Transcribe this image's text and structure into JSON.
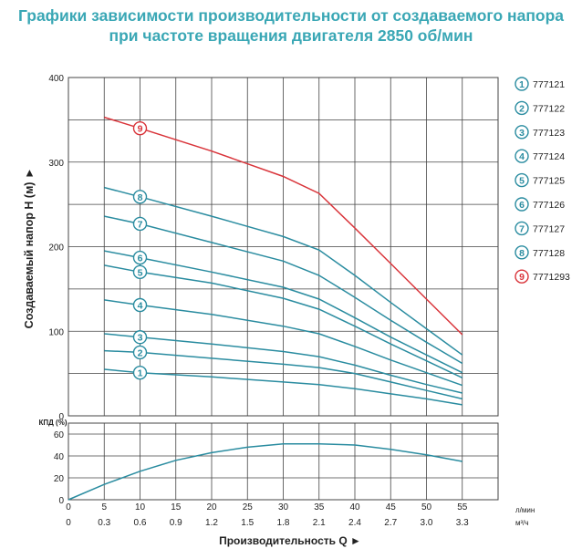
{
  "header": {
    "title_line1": "Графики зависимости производительности от создаваемого напора",
    "title_line2": "при частоте вращения двигателя 2850 об/мин"
  },
  "colors": {
    "curve": "#2a8ca0",
    "curve9": "#d9343a",
    "grid": "#444444",
    "title": "#3aa7b5"
  },
  "chart_data": [
    {
      "type": "line",
      "ylabel": "Создаваемый напор Н (м) ►",
      "ylim": [
        0,
        400
      ],
      "yticks": [
        0,
        100,
        200,
        300,
        400
      ],
      "xlim": [
        0,
        60
      ],
      "xticks": [
        5,
        10,
        15,
        20,
        25,
        30,
        35,
        40,
        45,
        50,
        55
      ],
      "series": [
        {
          "name": "777121",
          "label": "1",
          "marker_x": 10,
          "x": [
            5,
            10,
            20,
            30,
            35,
            40,
            45,
            50,
            55
          ],
          "y": [
            55,
            51,
            46,
            40,
            37,
            32,
            26,
            20,
            13
          ]
        },
        {
          "name": "777122",
          "label": "2",
          "marker_x": 10,
          "x": [
            5,
            10,
            20,
            30,
            35,
            40,
            45,
            50,
            55
          ],
          "y": [
            77,
            75,
            68,
            61,
            57,
            50,
            40,
            30,
            20
          ]
        },
        {
          "name": "777123",
          "label": "3",
          "marker_x": 10,
          "x": [
            5,
            10,
            20,
            30,
            35,
            40,
            45,
            50,
            55
          ],
          "y": [
            97,
            93,
            85,
            76,
            70,
            60,
            48,
            37,
            27
          ]
        },
        {
          "name": "777124",
          "label": "4",
          "marker_x": 10,
          "x": [
            5,
            10,
            20,
            30,
            35,
            40,
            45,
            50,
            55
          ],
          "y": [
            137,
            131,
            120,
            106,
            97,
            82,
            66,
            51,
            36
          ]
        },
        {
          "name": "777125",
          "label": "5",
          "marker_x": 10,
          "x": [
            5,
            10,
            20,
            30,
            35,
            40,
            45,
            50,
            55
          ],
          "y": [
            178,
            170,
            157,
            139,
            126,
            106,
            85,
            65,
            45
          ]
        },
        {
          "name": "777126",
          "label": "6",
          "marker_x": 10,
          "x": [
            5,
            10,
            20,
            30,
            35,
            40,
            45,
            50,
            55
          ],
          "y": [
            195,
            187,
            170,
            152,
            138,
            116,
            93,
            72,
            51
          ]
        },
        {
          "name": "777127",
          "label": "7",
          "marker_x": 10,
          "x": [
            5,
            10,
            20,
            30,
            35,
            40,
            45,
            50,
            55
          ],
          "y": [
            236,
            227,
            205,
            183,
            166,
            140,
            113,
            87,
            62
          ]
        },
        {
          "name": "777128",
          "label": "8",
          "marker_x": 10,
          "x": [
            5,
            10,
            20,
            30,
            35,
            40,
            45,
            50,
            55
          ],
          "y": [
            270,
            259,
            236,
            212,
            196,
            166,
            134,
            103,
            72
          ]
        },
        {
          "name": "7771293",
          "label": "9",
          "marker_x": 10,
          "highlight": true,
          "x": [
            5,
            10,
            20,
            30,
            35,
            40,
            45,
            50,
            55
          ],
          "y": [
            353,
            340,
            313,
            283,
            263,
            222,
            180,
            138,
            96
          ]
        }
      ]
    },
    {
      "type": "line",
      "ylabel": "КПД (%)",
      "ylim": [
        0,
        70
      ],
      "yticks": [
        0,
        20,
        40,
        60
      ],
      "xlabel": "Производительность Q ►",
      "xticks": [
        0,
        5,
        10,
        15,
        20,
        25,
        30,
        35,
        40,
        45,
        50,
        55
      ],
      "x2_labels": [
        "0",
        "0.3",
        "0.6",
        "0.9",
        "1.2",
        "1.5",
        "1.8",
        "2.1",
        "2.4",
        "2.7",
        "3.0",
        "3.3"
      ],
      "unit_lpm": "л/мин",
      "unit_m3h": "м³/ч",
      "series": [
        {
          "x": [
            0,
            5,
            10,
            15,
            20,
            25,
            30,
            35,
            40,
            45,
            50,
            55
          ],
          "y": [
            0,
            14,
            26,
            36,
            43,
            48,
            51,
            51,
            50,
            46,
            41,
            35
          ]
        }
      ]
    }
  ]
}
